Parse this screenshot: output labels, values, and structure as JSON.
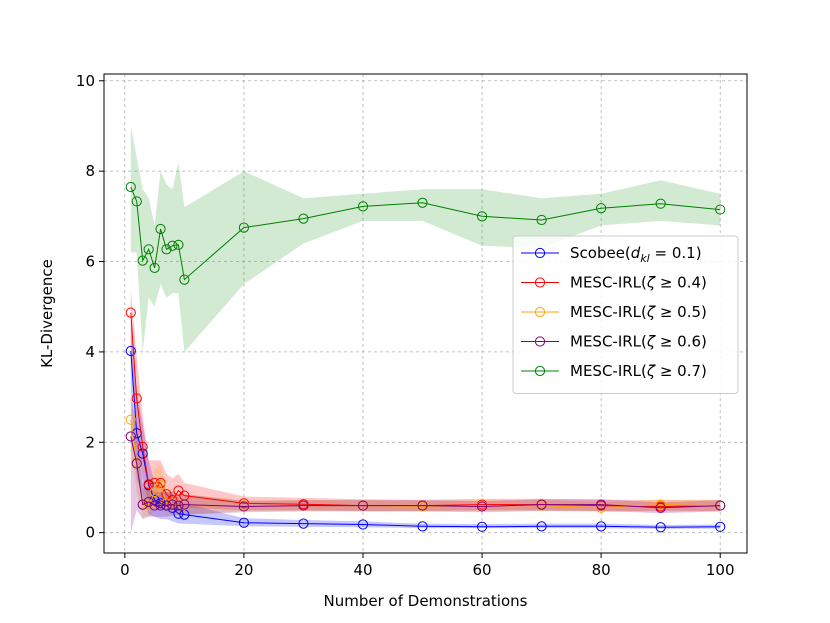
{
  "chart_data": {
    "type": "line",
    "title": "",
    "xlabel": "Number of Demonstrations",
    "ylabel": "KL-Divergence",
    "xlim": [
      -3.5,
      104.5
    ],
    "ylim": [
      -0.45,
      10.15
    ],
    "xticks": [
      0,
      20,
      40,
      60,
      80,
      100
    ],
    "yticks": [
      0,
      2,
      4,
      6,
      8,
      10
    ],
    "grid": true,
    "legend_position": "center-right",
    "x": [
      1,
      2,
      3,
      4,
      5,
      6,
      7,
      8,
      9,
      10,
      20,
      30,
      40,
      50,
      60,
      70,
      80,
      90,
      100
    ],
    "series": [
      {
        "name": "Scobee(d_kl = 0.1)",
        "label_main": "Scobee(",
        "label_math": "d",
        "label_sub": "kl",
        "label_tail": " = 0.1)",
        "color": "#0000ff",
        "values": [
          4.02,
          2.2,
          1.75,
          1.05,
          0.72,
          0.65,
          0.6,
          0.55,
          0.42,
          0.4,
          0.22,
          0.2,
          0.18,
          0.14,
          0.13,
          0.14,
          0.14,
          0.12,
          0.13
        ],
        "band_lower": [
          3.2,
          1.2,
          0.8,
          0.4,
          0.35,
          0.3,
          0.3,
          0.25,
          0.2,
          0.2,
          0.14,
          0.13,
          0.12,
          0.1,
          0.1,
          0.1,
          0.1,
          0.08,
          0.09
        ],
        "band_upper": [
          4.7,
          3.1,
          2.4,
          1.6,
          1.1,
          1.0,
          0.9,
          0.85,
          0.7,
          0.65,
          0.32,
          0.28,
          0.25,
          0.2,
          0.19,
          0.2,
          0.2,
          0.17,
          0.18
        ]
      },
      {
        "name": "MESC-IRL(ζ ≥ 0.4)",
        "label_main": "MESC-IRL(",
        "label_math": "ζ",
        "label_sub": "",
        "label_tail": " ≥ 0.4)",
        "color": "#ff0000",
        "values": [
          4.87,
          2.97,
          1.9,
          1.07,
          1.1,
          1.1,
          0.85,
          0.72,
          0.93,
          0.82,
          0.65,
          0.63,
          0.6,
          0.6,
          0.62,
          0.62,
          0.6,
          0.58,
          0.6
        ],
        "band_lower": [
          4.2,
          2.0,
          1.2,
          0.6,
          0.6,
          0.55,
          0.5,
          0.5,
          0.55,
          0.55,
          0.5,
          0.5,
          0.48,
          0.48,
          0.5,
          0.5,
          0.48,
          0.47,
          0.48
        ],
        "band_upper": [
          5.4,
          3.9,
          2.6,
          1.6,
          1.6,
          1.6,
          1.3,
          1.2,
          1.3,
          1.1,
          0.8,
          0.77,
          0.74,
          0.73,
          0.75,
          0.75,
          0.73,
          0.72,
          0.73
        ]
      },
      {
        "name": "MESC-IRL(ζ ≥ 0.5)",
        "label_main": "MESC-IRL(",
        "label_math": "ζ",
        "label_sub": "",
        "label_tail": " ≥ 0.5)",
        "color": "#ffa500",
        "values": [
          2.5,
          1.55,
          0.62,
          0.62,
          0.9,
          1.05,
          0.65,
          0.65,
          0.6,
          0.6,
          0.6,
          0.6,
          0.6,
          0.58,
          0.6,
          0.6,
          0.55,
          0.62,
          0.6
        ],
        "band_lower": [
          1.8,
          0.9,
          0.35,
          0.35,
          0.5,
          0.6,
          0.4,
          0.4,
          0.4,
          0.4,
          0.48,
          0.48,
          0.48,
          0.47,
          0.48,
          0.48,
          0.45,
          0.5,
          0.48
        ],
        "band_upper": [
          3.1,
          2.2,
          1.0,
          1.0,
          1.4,
          1.5,
          0.95,
          0.95,
          0.85,
          0.85,
          0.72,
          0.72,
          0.72,
          0.7,
          0.72,
          0.72,
          0.67,
          0.74,
          0.72
        ]
      },
      {
        "name": "MESC-IRL(ζ ≥ 0.6)",
        "label_main": "MESC-IRL(",
        "label_math": "ζ",
        "label_sub": "",
        "label_tail": " ≥ 0.6)",
        "color": "#800080",
        "values": [
          2.13,
          1.53,
          0.62,
          0.68,
          0.6,
          0.6,
          0.6,
          0.62,
          0.6,
          0.62,
          0.58,
          0.6,
          0.6,
          0.6,
          0.58,
          0.62,
          0.62,
          0.55,
          0.6
        ],
        "band_lower": [
          0.0,
          0.5,
          0.3,
          0.35,
          0.35,
          0.35,
          0.35,
          0.38,
          0.38,
          0.4,
          0.45,
          0.47,
          0.47,
          0.47,
          0.45,
          0.48,
          0.48,
          0.43,
          0.47
        ],
        "band_upper": [
          3.0,
          2.3,
          1.0,
          1.0,
          0.9,
          0.9,
          0.9,
          0.9,
          0.85,
          0.85,
          0.7,
          0.72,
          0.72,
          0.72,
          0.7,
          0.74,
          0.74,
          0.67,
          0.72
        ]
      },
      {
        "name": "MESC-IRL(ζ ≥ 0.7)",
        "label_main": "MESC-IRL(",
        "label_math": "ζ",
        "label_sub": "",
        "label_tail": " ≥ 0.7)",
        "color": "#008000",
        "band_color": "#2ca02c",
        "values": [
          7.65,
          7.33,
          6.02,
          6.27,
          5.86,
          6.72,
          6.27,
          6.35,
          6.37,
          5.6,
          6.75,
          6.95,
          7.22,
          7.3,
          7.0,
          6.92,
          7.18,
          7.28,
          7.15
        ],
        "band_lower": [
          6.2,
          6.2,
          4.0,
          5.2,
          5.0,
          5.5,
          5.2,
          5.3,
          5.3,
          4.0,
          5.5,
          6.4,
          6.9,
          6.9,
          6.35,
          6.3,
          6.8,
          6.9,
          6.8
        ],
        "band_upper": [
          9.0,
          8.3,
          7.6,
          7.4,
          6.8,
          8.0,
          7.7,
          7.6,
          8.2,
          7.2,
          8.0,
          7.4,
          7.5,
          7.6,
          7.6,
          7.4,
          7.5,
          7.8,
          7.5
        ]
      }
    ]
  }
}
